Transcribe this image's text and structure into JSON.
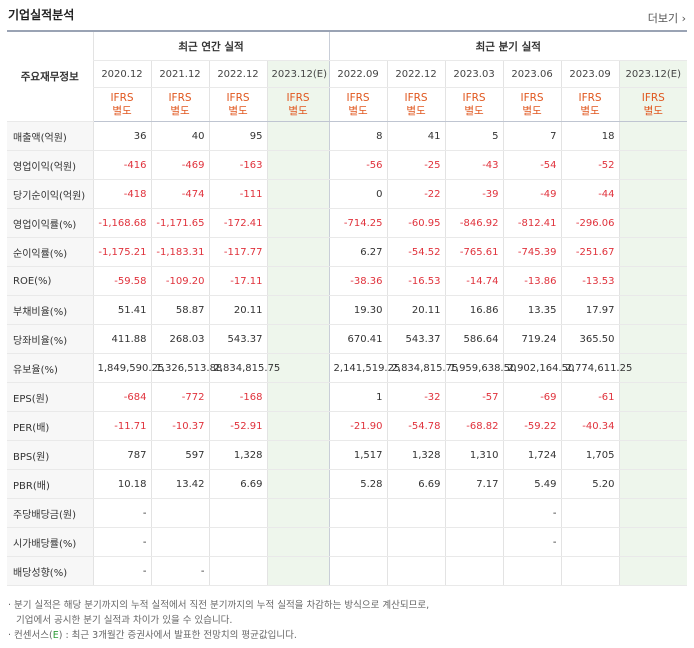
{
  "title": "기업실적분석",
  "more": "더보기",
  "headers": {
    "row_label": "주요재무정보",
    "annual": "최근 연간 실적",
    "quarterly": "최근 분기 실적",
    "periods": [
      "2020.12",
      "2021.12",
      "2022.12",
      "2023.12(E)",
      "2022.09",
      "2022.12",
      "2023.03",
      "2023.06",
      "2023.09",
      "2023.12(E)"
    ],
    "ifrs_line1": "IFRS",
    "ifrs_line2": "별도"
  },
  "rows": [
    {
      "label": "매출액(억원)",
      "values": [
        "36",
        "40",
        "95",
        "",
        "8",
        "41",
        "5",
        "7",
        "18",
        ""
      ]
    },
    {
      "label": "영업이익(억원)",
      "values": [
        "-416",
        "-469",
        "-163",
        "",
        "-56",
        "-25",
        "-43",
        "-54",
        "-52",
        ""
      ]
    },
    {
      "label": "당기순이익(억원)",
      "values": [
        "-418",
        "-474",
        "-111",
        "",
        "0",
        "-22",
        "-39",
        "-49",
        "-44",
        ""
      ]
    },
    {
      "label": "영업이익률(%)",
      "values": [
        "-1,168.68",
        "-1,171.65",
        "-172.41",
        "",
        "-714.25",
        "-60.95",
        "-846.92",
        "-812.41",
        "-296.06",
        ""
      ]
    },
    {
      "label": "순이익률(%)",
      "values": [
        "-1,175.21",
        "-1,183.31",
        "-117.77",
        "",
        "6.27",
        "-54.52",
        "-765.61",
        "-745.39",
        "-251.67",
        ""
      ]
    },
    {
      "label": "ROE(%)",
      "values": [
        "-59.58",
        "-109.20",
        "-17.11",
        "",
        "-38.36",
        "-16.53",
        "-14.74",
        "-13.86",
        "-13.53",
        ""
      ]
    },
    {
      "label": "부채비율(%)",
      "values": [
        "51.41",
        "58.87",
        "20.11",
        "",
        "19.30",
        "20.11",
        "16.86",
        "13.35",
        "17.97",
        ""
      ]
    },
    {
      "label": "당좌비율(%)",
      "values": [
        "411.88",
        "268.03",
        "543.37",
        "",
        "670.41",
        "543.37",
        "586.64",
        "719.24",
        "365.50",
        ""
      ]
    },
    {
      "label": "유보율(%)",
      "values": [
        "1,849,590.25",
        "1,326,513.88",
        "2,834,815.75",
        "",
        "2,141,519.25",
        "2,834,815.75",
        "1,959,638.50",
        "2,902,164.50",
        "2,774,611.25",
        ""
      ]
    },
    {
      "label": "EPS(원)",
      "values": [
        "-684",
        "-772",
        "-168",
        "",
        "1",
        "-32",
        "-57",
        "-69",
        "-61",
        ""
      ]
    },
    {
      "label": "PER(배)",
      "values": [
        "-11.71",
        "-10.37",
        "-52.91",
        "",
        "-21.90",
        "-54.78",
        "-68.82",
        "-59.22",
        "-40.34",
        ""
      ]
    },
    {
      "label": "BPS(원)",
      "values": [
        "787",
        "597",
        "1,328",
        "",
        "1,517",
        "1,328",
        "1,310",
        "1,724",
        "1,705",
        ""
      ]
    },
    {
      "label": "PBR(배)",
      "values": [
        "10.18",
        "13.42",
        "6.69",
        "",
        "5.28",
        "6.69",
        "7.17",
        "5.49",
        "5.20",
        ""
      ]
    },
    {
      "label": "주당배당금(원)",
      "values": [
        "-",
        "",
        "",
        "",
        "",
        "",
        "",
        "-",
        "",
        ""
      ]
    },
    {
      "label": "시가배당률(%)",
      "values": [
        "-",
        "",
        "",
        "",
        "",
        "",
        "",
        "-",
        "",
        ""
      ]
    },
    {
      "label": "배당성향(%)",
      "values": [
        "-",
        "-",
        "",
        "",
        "",
        "",
        "",
        "",
        "",
        ""
      ]
    }
  ],
  "notes": {
    "line1": "· 분기 실적은 해당 분기까지의 누적 실적에서 직전 분기까지의 누적 실적을 차감하는 방식으로 계산되므로,",
    "line2": "기업에서 공시한 분기 실적과 차이가 있을 수 있습니다.",
    "line3_a": "· 컨센서스(",
    "line3_e": "E",
    "line3_b": ") : 최근 3개월간 증권사에서 발표한 전망치의 평균값입니다."
  }
}
